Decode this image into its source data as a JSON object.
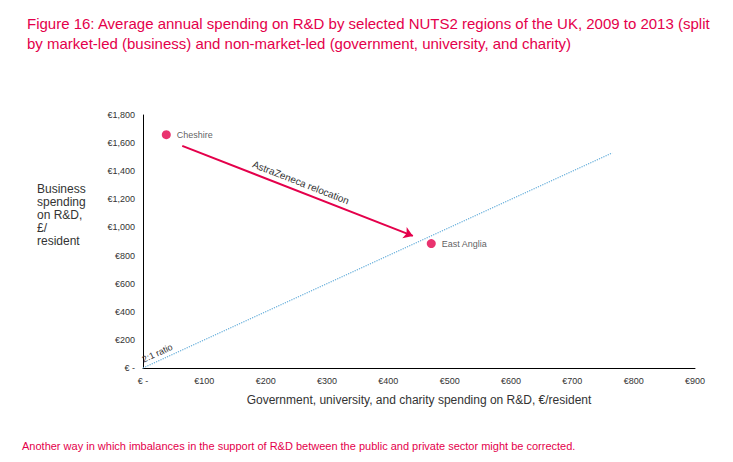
{
  "chart_data": {
    "type": "scatter",
    "title": "Figure 16: Average annual spending on R&D by selected NUTS2 regions of the UK, 2009 to 2013 (split by market-led (business) and non-market-led (government, university, and charity)",
    "caption": "Another way in which imbalances in the support of R&D between the public and private sector might be corrected.",
    "x_label": "Government, university, and charity spending on R&D, €/resident",
    "y_label": "Business spending on R&D, £/resident",
    "xlim": [
      0,
      900
    ],
    "ylim": [
      0,
      1800
    ],
    "xticks": [
      {
        "value": 0,
        "label": "€ -"
      },
      {
        "value": 100,
        "label": "€100"
      },
      {
        "value": 200,
        "label": "€200"
      },
      {
        "value": 300,
        "label": "€300"
      },
      {
        "value": 400,
        "label": "€400"
      },
      {
        "value": 500,
        "label": "€500"
      },
      {
        "value": 600,
        "label": "€600"
      },
      {
        "value": 700,
        "label": "€700"
      },
      {
        "value": 800,
        "label": "€800"
      },
      {
        "value": 900,
        "label": "€900"
      }
    ],
    "yticks": [
      {
        "value": 0,
        "label": "€ -"
      },
      {
        "value": 200,
        "label": "€200"
      },
      {
        "value": 400,
        "label": "€400"
      },
      {
        "value": 600,
        "label": "€600"
      },
      {
        "value": 800,
        "label": "€800"
      },
      {
        "value": 1000,
        "label": "€1,000"
      },
      {
        "value": 1200,
        "label": "€1,200"
      },
      {
        "value": 1400,
        "label": "€1,400"
      },
      {
        "value": 1600,
        "label": "€1,600"
      },
      {
        "value": 1800,
        "label": "€1,800"
      }
    ],
    "grid": false,
    "color": "#e4004b",
    "points": [
      {
        "label": "Cheshire",
        "x": 38,
        "y": 1660
      },
      {
        "label": "East Anglia",
        "x": 470,
        "y": 885
      }
    ],
    "annotations": [
      {
        "type": "arrow",
        "text": "AstraZeneca relocation",
        "from": [
          64,
          1580
        ],
        "to": [
          440,
          940
        ],
        "color": "#e4004b"
      },
      {
        "type": "line",
        "text": "2:1 ratio",
        "from": [
          0,
          0
        ],
        "to": [
          765,
          1530
        ],
        "color": "#5aa8d8",
        "line_style": "dotted"
      }
    ]
  }
}
